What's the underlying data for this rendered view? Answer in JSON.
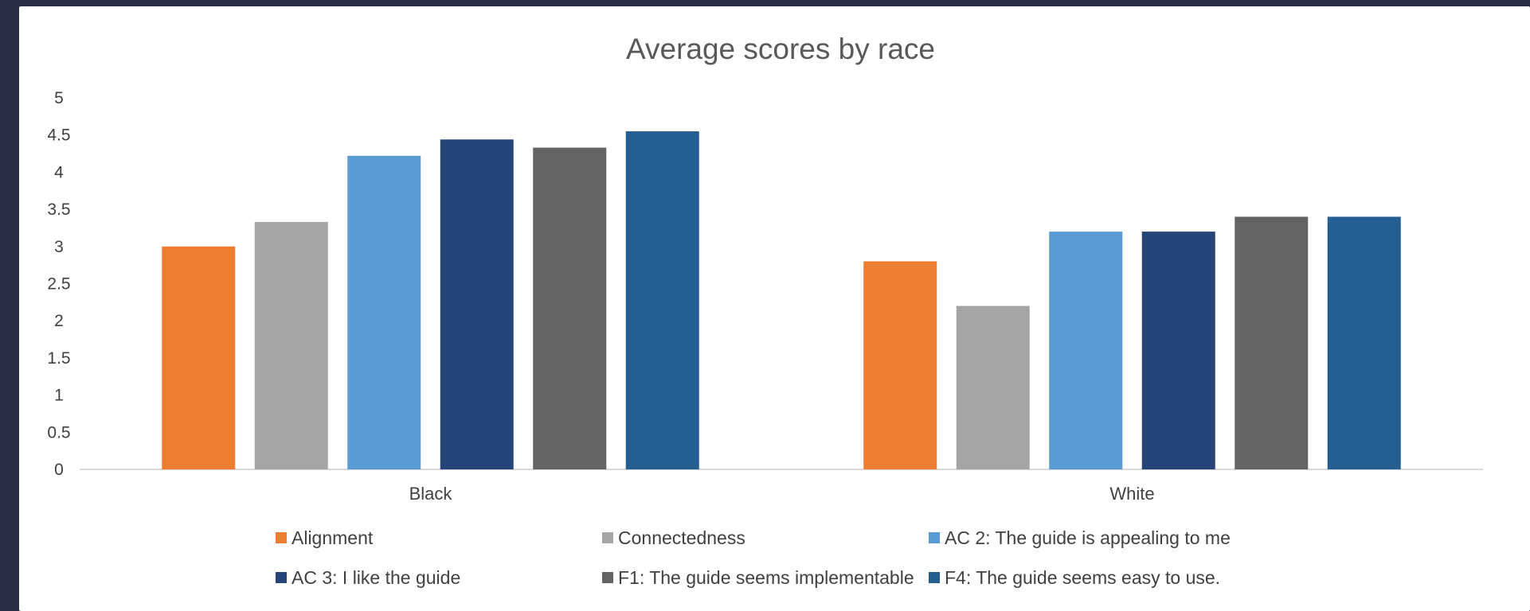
{
  "chart_data": {
    "type": "bar",
    "title": "Average scores by race",
    "xlabel": "",
    "ylabel": "",
    "categories": [
      "Black",
      "White"
    ],
    "ylim": [
      0,
      5
    ],
    "yticks": [
      0,
      0.5,
      1,
      1.5,
      2,
      2.5,
      3,
      3.5,
      4,
      4.5,
      5
    ],
    "ytick_labels": [
      "0",
      "0.5",
      "1",
      "1.5",
      "2",
      "2.5",
      "3",
      "3.5",
      "4",
      "4.5",
      "5"
    ],
    "grid": false,
    "legend_position": "bottom",
    "series": [
      {
        "name": "Alignment",
        "color": "#ed7d31",
        "values": [
          3.0,
          2.8
        ]
      },
      {
        "name": "Connectedness",
        "color": "#a5a5a5",
        "values": [
          3.33,
          2.2
        ]
      },
      {
        "name": "AC 2: The guide is appealing to me",
        "color": "#5b9bd5",
        "values": [
          4.22,
          3.2
        ]
      },
      {
        "name": "AC 3: I like the guide",
        "color": "#264478",
        "values": [
          4.44,
          3.2
        ]
      },
      {
        "name": "F1: The guide seems implementable",
        "color": "#636363",
        "values": [
          4.33,
          3.4
        ]
      },
      {
        "name": "F4: The guide seems easy to use.",
        "color": "#255e91",
        "values": [
          4.55,
          3.4
        ]
      }
    ]
  }
}
